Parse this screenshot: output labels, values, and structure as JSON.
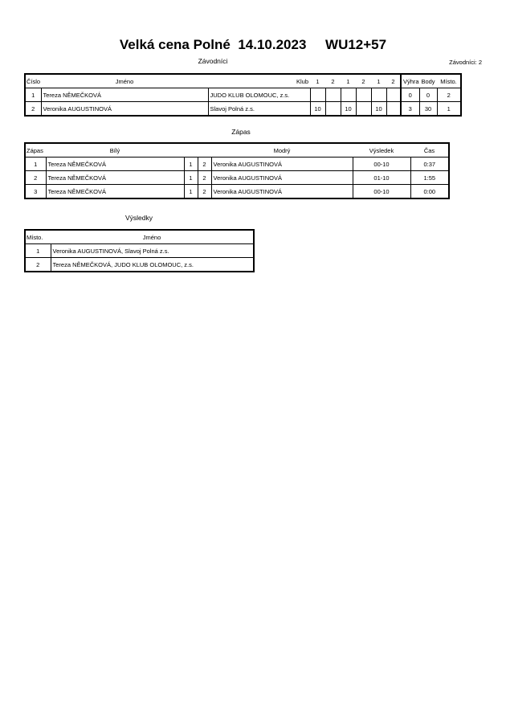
{
  "header": {
    "title": "Velká cena Polné  14.10.2023     WU12+57",
    "competitors_caption": "Závodníci",
    "competitors_count": "Závodníci: 2"
  },
  "competitors": {
    "columns": [
      "Číslo",
      "Jméno",
      "Klub",
      "1",
      "2",
      "1",
      "2",
      "1",
      "2",
      "Výhra",
      "Body",
      "Místo."
    ],
    "rows": [
      [
        "1",
        "Tereza NĚMEČKOVÁ",
        "JUDO KLUB OLOMOUC, z.s.",
        "",
        "",
        "",
        "",
        "",
        "",
        "0",
        "0",
        "2"
      ],
      [
        "2",
        "Veronika AUGUSTINOVÁ",
        "Slavoj Polná z.s.",
        "10",
        "",
        "10",
        "",
        "10",
        "",
        "3",
        "30",
        "1"
      ]
    ]
  },
  "matches": {
    "caption": "Zápas",
    "columns": [
      "Zápas",
      "Bílý",
      "Modrý",
      "Výsledek",
      "Čas"
    ],
    "rows": [
      [
        "1",
        "Tereza NĚMEČKOVÁ",
        "1",
        "2",
        "Veronika AUGUSTINOVÁ",
        "00-10",
        "0:37"
      ],
      [
        "2",
        "Tereza NĚMEČKOVÁ",
        "1",
        "2",
        "Veronika AUGUSTINOVÁ",
        "01-10",
        "1:55"
      ],
      [
        "3",
        "Tereza NĚMEČKOVÁ",
        "1",
        "2",
        "Veronika AUGUSTINOVÁ",
        "00-10",
        "0:00"
      ]
    ]
  },
  "results": {
    "caption": "Výsledky",
    "columns": [
      "Místo.",
      "Jméno"
    ],
    "rows": [
      [
        "1",
        "Veronika AUGUSTINOVÁ, Slavoj Polná z.s."
      ],
      [
        "2",
        "Tereza NĚMEČKOVÁ, JUDO KLUB OLOMOUC, z.s."
      ]
    ]
  }
}
